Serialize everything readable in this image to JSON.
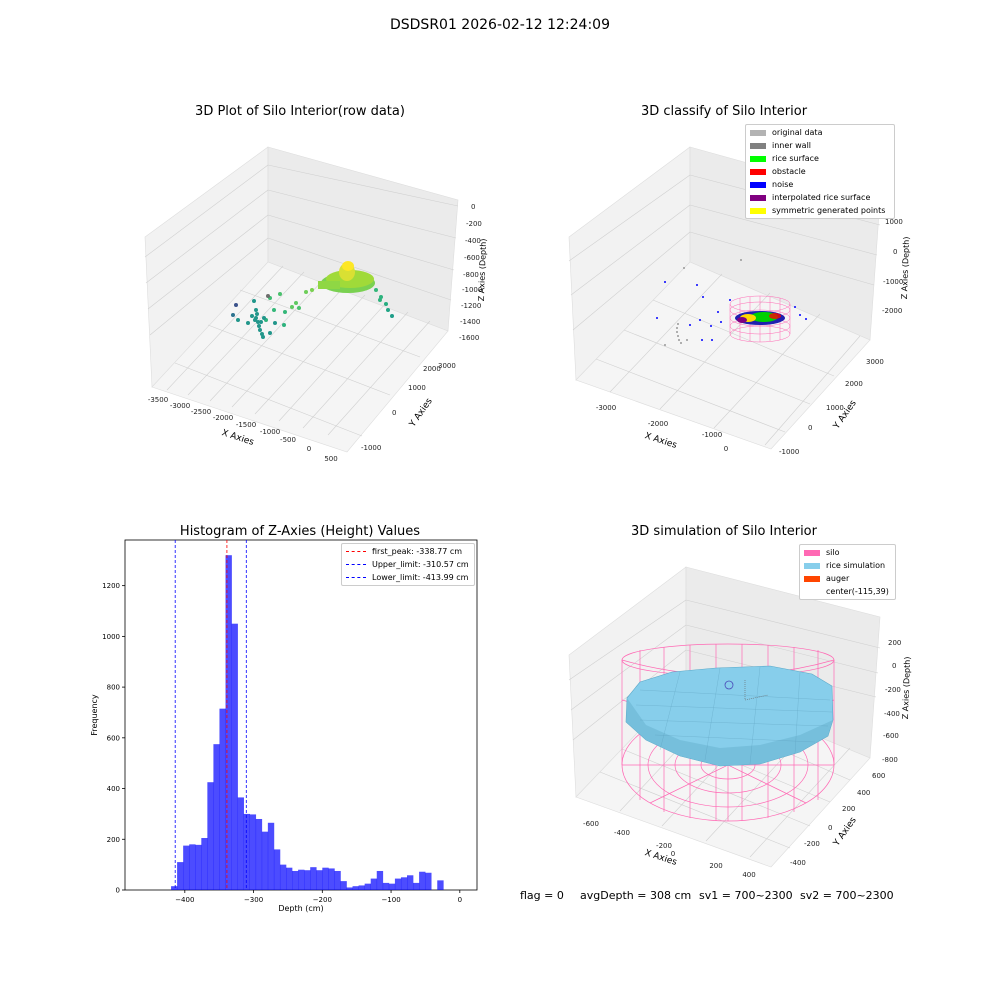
{
  "figure": {
    "suptitle": "DSDSR01 2026-02-12 12:24:09"
  },
  "chart_data": [
    {
      "type": "scatter",
      "title": "3D Plot of Silo Interior(row data)",
      "xlabel": "X Axies",
      "ylabel": "Y Axies",
      "zlabel": "Z Axies (Depth)",
      "x_ticks": [
        "-3500",
        "-3000",
        "-2500",
        "-2000",
        "-1500",
        "-1000",
        "-500",
        "0",
        "500"
      ],
      "y_ticks": [
        "-1000",
        "0",
        "1000",
        "2000",
        "3000"
      ],
      "z_ticks": [
        "0",
        "-200",
        "-400",
        "-600",
        "-800",
        "-1000",
        "-1200",
        "-1400",
        "-1600"
      ],
      "xlim": [
        -3500,
        500
      ],
      "ylim": [
        -1000,
        3000
      ],
      "zlim": [
        -1600,
        0
      ],
      "colormap": "viridis"
    },
    {
      "type": "scatter",
      "title": "3D classify of Silo Interior",
      "xlabel": "X Axies",
      "ylabel": "Y Axies",
      "zlabel": "Z Axies (Depth)",
      "x_ticks": [
        "-3000",
        "-2000",
        "-1000",
        "0"
      ],
      "y_ticks": [
        "-1000",
        "0",
        "1000",
        "2000",
        "3000"
      ],
      "z_ticks": [
        "1000",
        "0",
        "-1000",
        "-2000"
      ],
      "legend": [
        {
          "label": "original data",
          "color": "#b3b3b3"
        },
        {
          "label": "inner wall",
          "color": "#808080"
        },
        {
          "label": "rice surface",
          "color": "#00ff00"
        },
        {
          "label": "obstacle",
          "color": "#ff0000"
        },
        {
          "label": "noise",
          "color": "#0000ff"
        },
        {
          "label": "interpolated rice surface",
          "color": "#800080"
        },
        {
          "label": "symmetric generated points",
          "color": "#ffff00"
        }
      ],
      "legend_loc": "upper right"
    },
    {
      "type": "bar",
      "title": "Histogram of Z-Axies (Height) Values",
      "xlabel": "Depth (cm)",
      "ylabel": "Frequency",
      "xlim": [
        -487,
        25
      ],
      "ylim": [
        0,
        1380
      ],
      "x_ticks": [
        -400,
        -300,
        -200,
        -100,
        0
      ],
      "y_ticks": [
        0,
        200,
        400,
        600,
        800,
        1000,
        1200
      ],
      "bin_start": -420,
      "bin_width": 8.8,
      "values": [
        15,
        110,
        175,
        180,
        178,
        205,
        425,
        575,
        715,
        1320,
        1050,
        365,
        300,
        298,
        280,
        230,
        265,
        160,
        100,
        88,
        75,
        80,
        78,
        90,
        78,
        88,
        85,
        75,
        35,
        10,
        15,
        18,
        25,
        45,
        75,
        28,
        25,
        45,
        50,
        58,
        28,
        72,
        68,
        0,
        38
      ],
      "bar_color": "#0000ff",
      "vlines": [
        {
          "label": "first_peak: -338.77 cm",
          "x": -338.77,
          "color": "#ff0000"
        },
        {
          "label": "Upper_limit: -310.57 cm",
          "x": -310.57,
          "color": "#0000ff"
        },
        {
          "label": "Lower_limit: -413.99 cm",
          "x": -413.99,
          "color": "#0000ff"
        }
      ],
      "legend_loc": "upper right"
    },
    {
      "type": "scatter",
      "title": "3D simulation of Silo Interior",
      "xlabel": "X Axies",
      "ylabel": "Y Axies",
      "zlabel": "Z Axies (Depth)",
      "x_ticks": [
        "-600",
        "-400",
        "-200",
        "0",
        "200",
        "400"
      ],
      "y_ticks": [
        "-400",
        "-200",
        "0",
        "200",
        "400",
        "600"
      ],
      "z_ticks": [
        "200",
        "0",
        "-200",
        "-400",
        "-600",
        "-800"
      ],
      "legend": [
        {
          "label": "silo",
          "color": "#ff69b4"
        },
        {
          "label": "rice simulation",
          "color": "#87ceeb"
        },
        {
          "label": "auger",
          "color": "#ff4500"
        },
        {
          "label": "center(-115,39)",
          "color": ""
        }
      ],
      "legend_loc": "upper right"
    }
  ],
  "footer": {
    "flag": "flag = 0",
    "avg_depth": "avgDepth = 308 cm",
    "sv1": "sv1 = 700~2300",
    "sv2": "sv2 = 700~2300"
  }
}
